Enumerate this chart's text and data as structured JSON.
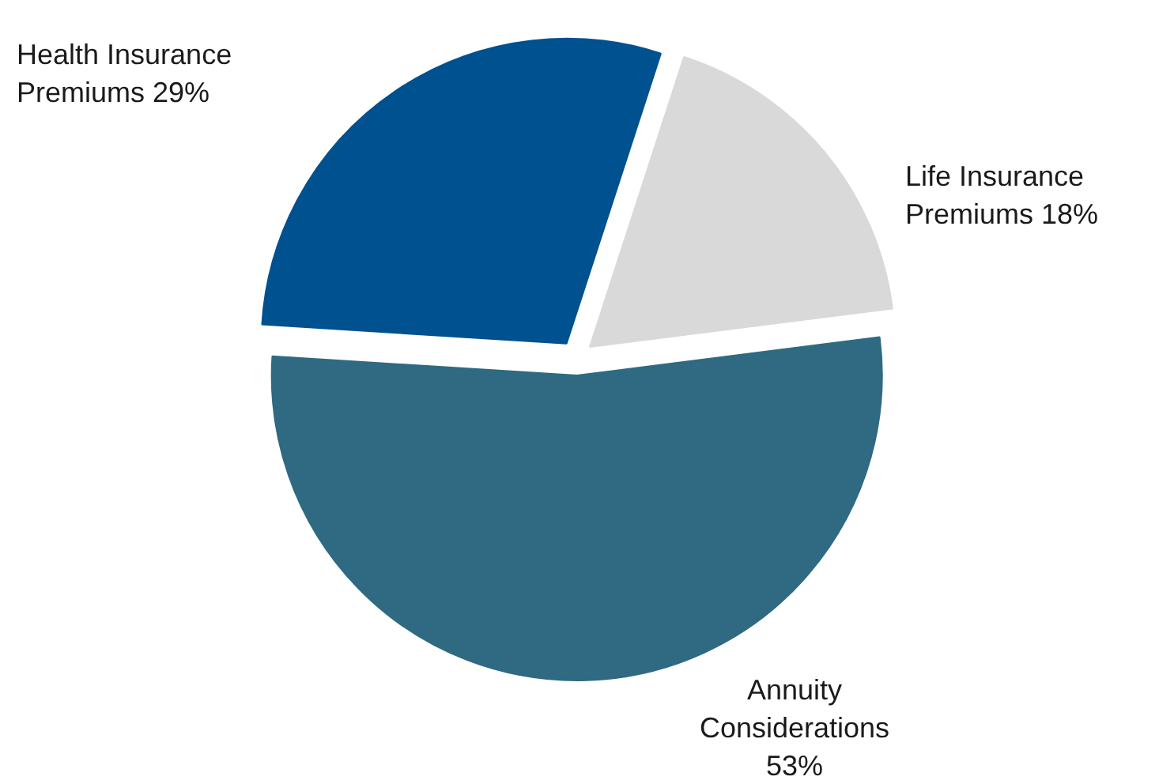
{
  "chart_data": {
    "type": "pie",
    "categories": [
      "Health Insurance\nPremiums",
      "Life Insurance\nPremiums",
      "Annuity\nConsiderations"
    ],
    "values": [
      29,
      18,
      53
    ],
    "value_labels": [
      "29%",
      "18%",
      "53%"
    ],
    "colors": [
      "#005190",
      "#d9d9d9",
      "#2f6a82"
    ]
  }
}
